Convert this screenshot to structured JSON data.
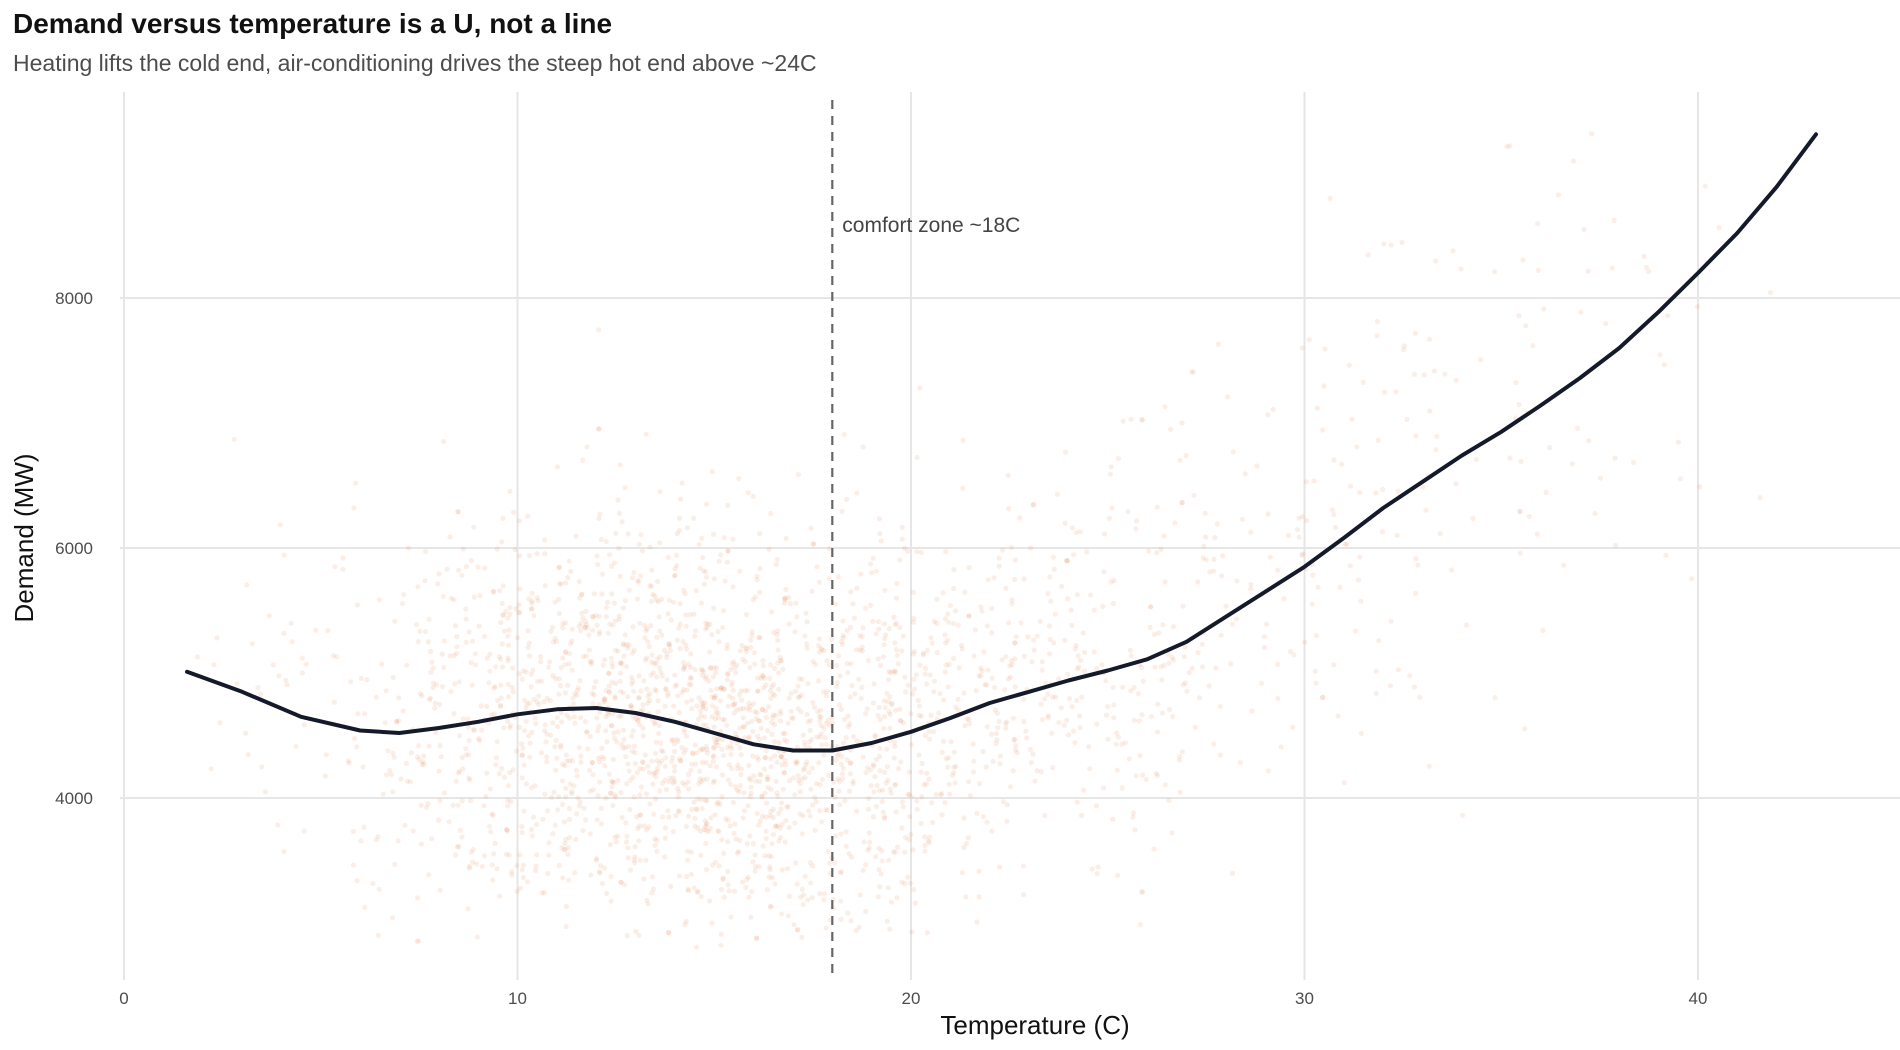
{
  "title": "Demand versus temperature is a U, not a line",
  "subtitle": "Heating lifts the cold end, air-conditioning drives the steep hot end above ~24C",
  "chart_data": {
    "type": "scatter",
    "title": "Demand versus temperature is a U, not a line",
    "subtitle": "Heating lifts the cold end, air-conditioning drives the steep hot end above ~24C",
    "xlabel": "Temperature (C)",
    "ylabel": "Demand (MW)",
    "xlim": [
      0,
      45
    ],
    "ylim": [
      2500,
      9500
    ],
    "x_ticks": [
      0,
      10,
      20,
      30,
      40
    ],
    "x_tick_labels": [
      "0",
      "10",
      "20",
      "30",
      "40"
    ],
    "y_ticks": [
      4000,
      6000,
      8000
    ],
    "y_tick_labels": [
      "4000",
      "6000",
      "8000"
    ],
    "grid": true,
    "legend": "none",
    "colors": {
      "points": "#e07a45",
      "trend": "#151a2b",
      "reference_line": "#666666",
      "grid": "#e6e6e6"
    },
    "scatter_description": "Dense cloud of semi-transparent observations; bulk of points between 8C and 22C with demand 3000-6500 MW; sparse points up to ~43C reaching ~9300 MW",
    "trend": {
      "name": "smooth fit",
      "x": [
        1.6,
        3,
        4.5,
        6,
        7,
        8,
        9,
        10,
        11,
        12,
        13,
        14,
        15,
        16,
        17,
        18,
        19,
        20,
        21,
        22,
        23,
        24,
        25,
        26,
        27,
        28,
        29,
        30,
        31,
        32,
        33,
        34,
        35,
        36,
        37,
        38,
        39,
        40,
        41,
        42,
        43
      ],
      "y": [
        5010,
        4850,
        4650,
        4540,
        4520,
        4560,
        4610,
        4670,
        4710,
        4720,
        4680,
        4610,
        4520,
        4430,
        4380,
        4380,
        4440,
        4530,
        4640,
        4760,
        4850,
        4940,
        5020,
        5110,
        5250,
        5450,
        5650,
        5850,
        6080,
        6320,
        6530,
        6740,
        6930,
        7140,
        7360,
        7600,
        7890,
        8200,
        8520,
        8890,
        9310
      ]
    },
    "reference_line": {
      "x": 18,
      "label": "comfort zone ~18C",
      "style": "dashed"
    }
  }
}
